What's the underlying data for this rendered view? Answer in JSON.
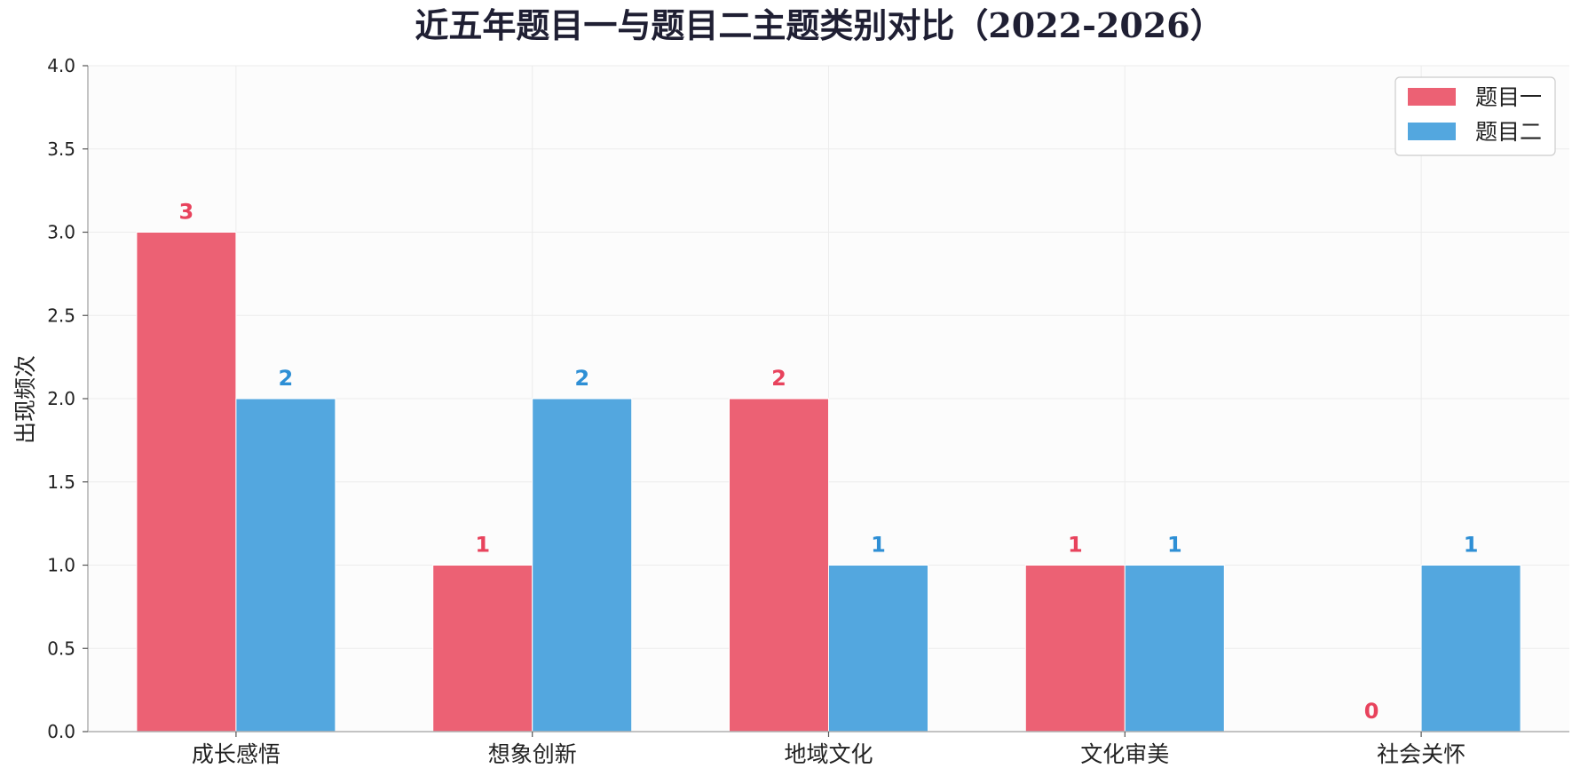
{
  "chart_data": {
    "type": "bar",
    "title": "近五年题目一与题目二主题类别对比（2022-2026）",
    "xlabel": "",
    "ylabel": "出现频次",
    "categories": [
      "成长感悟",
      "想象创新",
      "地域文化",
      "文化审美",
      "社会关怀"
    ],
    "series": [
      {
        "name": "题目一",
        "values": [
          3,
          1,
          2,
          1,
          0
        ],
        "color": "#ec6174",
        "label_color": "#e8435d"
      },
      {
        "name": "题目二",
        "values": [
          2,
          2,
          1,
          1,
          1
        ],
        "color": "#53a7df",
        "label_color": "#2e8fd5"
      }
    ],
    "ylim": [
      0,
      4.0
    ],
    "yticks": [
      "0.0",
      "0.5",
      "1.0",
      "1.5",
      "2.0",
      "2.5",
      "3.0",
      "3.5",
      "4.0"
    ],
    "grid": true,
    "legend_position": "top-right",
    "colors": {
      "plot_background": "#fcfcfc",
      "grid": "#ececec",
      "axis": "#b0b0b0"
    }
  }
}
